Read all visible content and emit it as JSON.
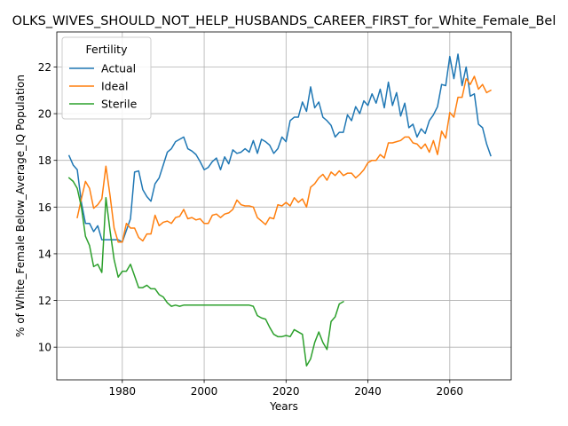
{
  "chart_data": {
    "type": "line",
    "title": "OLKS_WIVES_SHOULD_NOT_HELP_HUSBANDS_CAREER_FIRST_for_White_Female_Bel",
    "xlabel": "Years",
    "ylabel": "% of White_Female Below_Average_IQ Population",
    "xlim": [
      1964,
      2075
    ],
    "ylim": [
      8.6,
      23.5
    ],
    "xticks": [
      1980,
      2000,
      2020,
      2040,
      2060
    ],
    "yticks": [
      10,
      12,
      14,
      16,
      18,
      20,
      22
    ],
    "grid": true,
    "legend": {
      "title": "Fertility",
      "position": "top-left"
    },
    "colors": {
      "Actual": "#1f77b4",
      "Ideal": "#ff7f0e",
      "Sterile": "#2ca02c"
    },
    "series": [
      {
        "name": "Actual",
        "points": [
          [
            1967,
            18.2
          ],
          [
            1968,
            17.8
          ],
          [
            1969,
            17.6
          ],
          [
            1970,
            16.2
          ],
          [
            1971,
            15.3
          ],
          [
            1972,
            15.3
          ],
          [
            1973,
            14.95
          ],
          [
            1974,
            15.2
          ],
          [
            1975,
            14.6
          ],
          [
            1976,
            14.6
          ],
          [
            1977,
            14.6
          ],
          [
            1978,
            14.6
          ],
          [
            1979,
            14.6
          ],
          [
            1980,
            14.5
          ],
          [
            1981,
            15.0
          ],
          [
            1982,
            15.5
          ],
          [
            1983,
            17.5
          ],
          [
            1984,
            17.55
          ],
          [
            1985,
            16.75
          ],
          [
            1986,
            16.45
          ],
          [
            1987,
            16.25
          ],
          [
            1988,
            17.0
          ],
          [
            1989,
            17.25
          ],
          [
            1990,
            17.8
          ],
          [
            1991,
            18.35
          ],
          [
            1992,
            18.5
          ],
          [
            1993,
            18.8
          ],
          [
            1994,
            18.9
          ],
          [
            1995,
            19.0
          ],
          [
            1996,
            18.5
          ],
          [
            1997,
            18.4
          ],
          [
            1998,
            18.25
          ],
          [
            1999,
            17.95
          ],
          [
            2000,
            17.6
          ],
          [
            2001,
            17.7
          ],
          [
            2002,
            17.95
          ],
          [
            2003,
            18.1
          ],
          [
            2004,
            17.6
          ],
          [
            2005,
            18.15
          ],
          [
            2006,
            17.85
          ],
          [
            2007,
            18.45
          ],
          [
            2008,
            18.3
          ],
          [
            2009,
            18.35
          ],
          [
            2010,
            18.5
          ],
          [
            2011,
            18.35
          ],
          [
            2012,
            18.85
          ],
          [
            2013,
            18.3
          ],
          [
            2014,
            18.9
          ],
          [
            2015,
            18.8
          ],
          [
            2016,
            18.65
          ],
          [
            2017,
            18.3
          ],
          [
            2018,
            18.5
          ],
          [
            2019,
            19.0
          ],
          [
            2020,
            18.8
          ],
          [
            2021,
            19.7
          ],
          [
            2022,
            19.85
          ],
          [
            2023,
            19.85
          ],
          [
            2024,
            20.5
          ],
          [
            2025,
            20.1
          ],
          [
            2026,
            21.15
          ],
          [
            2027,
            20.25
          ],
          [
            2028,
            20.5
          ],
          [
            2029,
            19.85
          ],
          [
            2030,
            19.7
          ],
          [
            2031,
            19.5
          ],
          [
            2032,
            19.0
          ],
          [
            2033,
            19.2
          ],
          [
            2034,
            19.2
          ],
          [
            2035,
            19.95
          ],
          [
            2036,
            19.7
          ],
          [
            2037,
            20.3
          ],
          [
            2038,
            20.0
          ],
          [
            2039,
            20.55
          ],
          [
            2040,
            20.35
          ],
          [
            2041,
            20.85
          ],
          [
            2042,
            20.45
          ],
          [
            2043,
            21.05
          ],
          [
            2044,
            20.25
          ],
          [
            2045,
            21.35
          ],
          [
            2046,
            20.35
          ],
          [
            2047,
            20.9
          ],
          [
            2048,
            19.9
          ],
          [
            2049,
            20.45
          ],
          [
            2050,
            19.4
          ],
          [
            2051,
            19.55
          ],
          [
            2052,
            19.0
          ],
          [
            2053,
            19.35
          ],
          [
            2054,
            19.15
          ],
          [
            2055,
            19.7
          ],
          [
            2056,
            19.95
          ],
          [
            2057,
            20.3
          ],
          [
            2058,
            21.25
          ],
          [
            2059,
            21.2
          ],
          [
            2060,
            22.45
          ],
          [
            2061,
            21.5
          ],
          [
            2062,
            22.55
          ],
          [
            2063,
            21.2
          ],
          [
            2064,
            22.0
          ],
          [
            2065,
            20.75
          ],
          [
            2066,
            20.85
          ],
          [
            2067,
            19.55
          ],
          [
            2068,
            19.4
          ],
          [
            2069,
            18.7
          ],
          [
            2070,
            18.2
          ]
        ]
      },
      {
        "name": "Ideal",
        "points": [
          [
            1969,
            15.55
          ],
          [
            1970,
            16.35
          ],
          [
            1971,
            17.1
          ],
          [
            1972,
            16.8
          ],
          [
            1973,
            15.95
          ],
          [
            1974,
            16.1
          ],
          [
            1975,
            16.35
          ],
          [
            1976,
            17.75
          ],
          [
            1977,
            16.5
          ],
          [
            1978,
            15.1
          ],
          [
            1979,
            14.5
          ],
          [
            1980,
            14.5
          ],
          [
            1981,
            15.3
          ],
          [
            1982,
            15.1
          ],
          [
            1983,
            15.1
          ],
          [
            1984,
            14.7
          ],
          [
            1985,
            14.55
          ],
          [
            1986,
            14.85
          ],
          [
            1987,
            14.85
          ],
          [
            1988,
            15.65
          ],
          [
            1989,
            15.2
          ],
          [
            1990,
            15.35
          ],
          [
            1991,
            15.4
          ],
          [
            1992,
            15.3
          ],
          [
            1993,
            15.55
          ],
          [
            1994,
            15.6
          ],
          [
            1995,
            15.9
          ],
          [
            1996,
            15.5
          ],
          [
            1997,
            15.55
          ],
          [
            1998,
            15.45
          ],
          [
            1999,
            15.5
          ],
          [
            2000,
            15.3
          ],
          [
            2001,
            15.3
          ],
          [
            2002,
            15.65
          ],
          [
            2003,
            15.7
          ],
          [
            2004,
            15.55
          ],
          [
            2005,
            15.7
          ],
          [
            2006,
            15.75
          ],
          [
            2007,
            15.9
          ],
          [
            2008,
            16.3
          ],
          [
            2009,
            16.1
          ],
          [
            2010,
            16.05
          ],
          [
            2011,
            16.05
          ],
          [
            2012,
            16.0
          ],
          [
            2013,
            15.55
          ],
          [
            2014,
            15.4
          ],
          [
            2015,
            15.25
          ],
          [
            2016,
            15.55
          ],
          [
            2017,
            15.5
          ],
          [
            2018,
            16.1
          ],
          [
            2019,
            16.05
          ],
          [
            2020,
            16.2
          ],
          [
            2021,
            16.05
          ],
          [
            2022,
            16.4
          ],
          [
            2023,
            16.2
          ],
          [
            2024,
            16.35
          ],
          [
            2025,
            16.0
          ],
          [
            2026,
            16.85
          ],
          [
            2027,
            17.0
          ],
          [
            2028,
            17.25
          ],
          [
            2029,
            17.4
          ],
          [
            2030,
            17.15
          ],
          [
            2031,
            17.5
          ],
          [
            2032,
            17.35
          ],
          [
            2033,
            17.55
          ],
          [
            2034,
            17.35
          ],
          [
            2035,
            17.45
          ],
          [
            2036,
            17.45
          ],
          [
            2037,
            17.25
          ],
          [
            2038,
            17.4
          ],
          [
            2039,
            17.6
          ],
          [
            2040,
            17.9
          ],
          [
            2041,
            18.0
          ],
          [
            2042,
            18.0
          ],
          [
            2043,
            18.25
          ],
          [
            2044,
            18.1
          ],
          [
            2045,
            18.75
          ],
          [
            2046,
            18.75
          ],
          [
            2047,
            18.8
          ],
          [
            2048,
            18.85
          ],
          [
            2049,
            19.0
          ],
          [
            2050,
            19.0
          ],
          [
            2051,
            18.75
          ],
          [
            2052,
            18.7
          ],
          [
            2053,
            18.5
          ],
          [
            2054,
            18.7
          ],
          [
            2055,
            18.35
          ],
          [
            2056,
            18.85
          ],
          [
            2057,
            18.25
          ],
          [
            2058,
            19.25
          ],
          [
            2059,
            18.95
          ],
          [
            2060,
            20.05
          ],
          [
            2061,
            19.85
          ],
          [
            2062,
            20.7
          ],
          [
            2063,
            20.7
          ],
          [
            2064,
            21.5
          ],
          [
            2065,
            21.25
          ],
          [
            2066,
            21.6
          ],
          [
            2067,
            21.05
          ],
          [
            2068,
            21.25
          ],
          [
            2069,
            20.9
          ],
          [
            2070,
            21.0
          ]
        ]
      },
      {
        "name": "Sterile",
        "points": [
          [
            1967,
            17.25
          ],
          [
            1968,
            17.1
          ],
          [
            1969,
            16.8
          ],
          [
            1970,
            16.0
          ],
          [
            1971,
            14.75
          ],
          [
            1972,
            14.35
          ],
          [
            1973,
            13.45
          ],
          [
            1974,
            13.55
          ],
          [
            1975,
            13.2
          ],
          [
            1976,
            16.4
          ],
          [
            1977,
            15.0
          ],
          [
            1978,
            13.75
          ],
          [
            1979,
            13.0
          ],
          [
            1980,
            13.25
          ],
          [
            1981,
            13.25
          ],
          [
            1982,
            13.55
          ],
          [
            1983,
            13.05
          ],
          [
            1984,
            12.55
          ],
          [
            1985,
            12.55
          ],
          [
            1986,
            12.65
          ],
          [
            1987,
            12.5
          ],
          [
            1988,
            12.5
          ],
          [
            1989,
            12.25
          ],
          [
            1990,
            12.15
          ],
          [
            1991,
            11.9
          ],
          [
            1992,
            11.75
          ],
          [
            1993,
            11.8
          ],
          [
            1994,
            11.75
          ],
          [
            1995,
            11.8
          ],
          [
            1996,
            11.8
          ],
          [
            1997,
            11.8
          ],
          [
            1998,
            11.8
          ],
          [
            1999,
            11.8
          ],
          [
            2000,
            11.8
          ],
          [
            2001,
            11.8
          ],
          [
            2002,
            11.8
          ],
          [
            2003,
            11.8
          ],
          [
            2004,
            11.8
          ],
          [
            2005,
            11.8
          ],
          [
            2006,
            11.8
          ],
          [
            2007,
            11.8
          ],
          [
            2008,
            11.8
          ],
          [
            2009,
            11.8
          ],
          [
            2010,
            11.8
          ],
          [
            2011,
            11.8
          ],
          [
            2012,
            11.75
          ],
          [
            2013,
            11.35
          ],
          [
            2014,
            11.25
          ],
          [
            2015,
            11.2
          ],
          [
            2016,
            10.85
          ],
          [
            2017,
            10.55
          ],
          [
            2018,
            10.45
          ],
          [
            2019,
            10.45
          ],
          [
            2020,
            10.5
          ],
          [
            2021,
            10.45
          ],
          [
            2022,
            10.75
          ],
          [
            2023,
            10.65
          ],
          [
            2024,
            10.55
          ],
          [
            2025,
            9.2
          ],
          [
            2026,
            9.5
          ],
          [
            2027,
            10.2
          ],
          [
            2028,
            10.65
          ],
          [
            2029,
            10.2
          ],
          [
            2030,
            9.9
          ],
          [
            2031,
            11.1
          ],
          [
            2032,
            11.3
          ],
          [
            2033,
            11.85
          ],
          [
            2034,
            11.95
          ]
        ]
      }
    ]
  }
}
